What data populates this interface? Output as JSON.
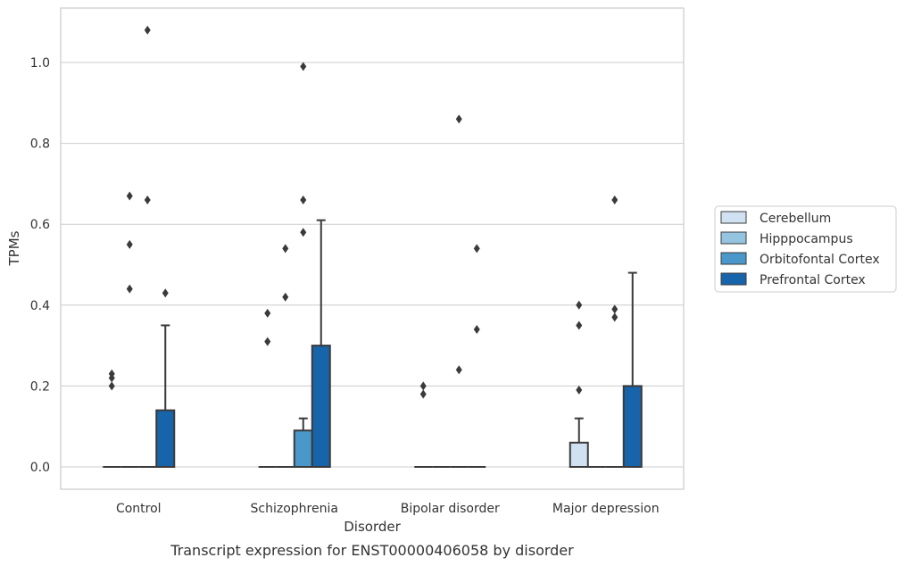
{
  "caption": "Transcript expression for ENST00000406058 by disorder",
  "chart_data": {
    "type": "box",
    "xlabel": "Disorder",
    "ylabel": "TPMs",
    "categories": [
      "Control",
      "Schizophrenia",
      "Bipolar disorder",
      "Major depression"
    ],
    "ylim": [
      -0.05,
      1.14
    ],
    "yticks": [
      0.0,
      0.2,
      0.4,
      0.6,
      0.8,
      1.0
    ],
    "ytick_labels": [
      "0.0",
      "0.2",
      "0.4",
      "0.6",
      "0.8",
      "1.0"
    ],
    "grid": "horizontal",
    "legend_position": "right",
    "series": [
      {
        "name": "Cerebellum",
        "color": "#d0e1f2",
        "boxes": [
          {
            "q1": 0,
            "median": 0,
            "q3": 0,
            "whislo": 0,
            "whishi": 0,
            "fliers": [
              0.2,
              0.22,
              0.23
            ]
          },
          {
            "q1": 0,
            "median": 0,
            "q3": 0,
            "whislo": 0,
            "whishi": 0,
            "fliers": [
              0.31,
              0.38
            ]
          },
          {
            "q1": 0,
            "median": 0,
            "q3": 0,
            "whislo": 0,
            "whishi": 0,
            "fliers": [
              0.18,
              0.2
            ]
          },
          {
            "q1": 0,
            "median": 0,
            "q3": 0.06,
            "whislo": 0,
            "whishi": 0.12,
            "fliers": [
              0.19,
              0.35,
              0.4
            ]
          }
        ]
      },
      {
        "name": "Hipppocampus",
        "color": "#94c4df",
        "boxes": [
          {
            "q1": 0,
            "median": 0,
            "q3": 0,
            "whislo": 0,
            "whishi": 0,
            "fliers": [
              0.44,
              0.55,
              0.67
            ]
          },
          {
            "q1": 0,
            "median": 0,
            "q3": 0,
            "whislo": 0,
            "whishi": 0,
            "fliers": [
              0.42,
              0.54
            ]
          },
          {
            "q1": 0,
            "median": 0,
            "q3": 0,
            "whislo": 0,
            "whishi": 0,
            "fliers": []
          },
          {
            "q1": 0,
            "median": 0,
            "q3": 0,
            "whislo": 0,
            "whishi": 0,
            "fliers": []
          }
        ]
      },
      {
        "name": "Orbitofontal Cortex",
        "color": "#4a98c9",
        "boxes": [
          {
            "q1": 0,
            "median": 0,
            "q3": 0,
            "whislo": 0,
            "whishi": 0,
            "fliers": [
              0.66,
              1.08
            ]
          },
          {
            "q1": 0,
            "median": 0,
            "q3": 0.09,
            "whislo": 0,
            "whishi": 0.12,
            "fliers": [
              0.58,
              0.66,
              0.99
            ]
          },
          {
            "q1": 0,
            "median": 0,
            "q3": 0,
            "whislo": 0,
            "whishi": 0,
            "fliers": [
              0.24,
              0.86
            ]
          },
          {
            "q1": 0,
            "median": 0,
            "q3": 0,
            "whislo": 0,
            "whishi": 0,
            "fliers": [
              0.37,
              0.39,
              0.66
            ]
          }
        ]
      },
      {
        "name": "Prefrontal Cortex",
        "color": "#1764ab",
        "boxes": [
          {
            "q1": 0,
            "median": 0,
            "q3": 0.14,
            "whislo": 0,
            "whishi": 0.35,
            "fliers": [
              0.43
            ]
          },
          {
            "q1": 0,
            "median": 0,
            "q3": 0.3,
            "whislo": 0,
            "whishi": 0.61,
            "fliers": []
          },
          {
            "q1": 0,
            "median": 0,
            "q3": 0,
            "whislo": 0,
            "whishi": 0,
            "fliers": [
              0.34,
              0.54
            ]
          },
          {
            "q1": 0,
            "median": 0,
            "q3": 0.2,
            "whislo": 0,
            "whishi": 0.48,
            "fliers": []
          }
        ]
      }
    ]
  }
}
